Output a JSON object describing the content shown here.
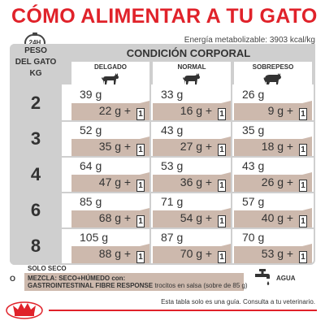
{
  "title": "CÓMO ALIMENTAR A TU GATO",
  "clock_label": "24H",
  "energy": "Energía metabolizable: 3903 kcal/kg",
  "weight_header": [
    "PESO",
    "DEL GATO",
    "KG"
  ],
  "condition_header": "CONDICIÓN CORPORAL",
  "columns": [
    "DELGADO",
    "NORMAL",
    "SOBREPESO"
  ],
  "pouch_label": "1",
  "rows": [
    {
      "kg": "2",
      "cells": [
        {
          "dry": "39 g",
          "mix": "22 g  + "
        },
        {
          "dry": "33 g",
          "mix": "16 g  + "
        },
        {
          "dry": "26 g",
          "mix": "9 g  + "
        }
      ]
    },
    {
      "kg": "3",
      "cells": [
        {
          "dry": "52 g",
          "mix": "35 g  + "
        },
        {
          "dry": "43 g",
          "mix": "27 g  + "
        },
        {
          "dry": "35 g",
          "mix": "18 g  + "
        }
      ]
    },
    {
      "kg": "4",
      "cells": [
        {
          "dry": "64 g",
          "mix": "47 g  + "
        },
        {
          "dry": "53 g",
          "mix": "36 g  + "
        },
        {
          "dry": "43 g",
          "mix": "26 g  + "
        }
      ]
    },
    {
      "kg": "6",
      "cells": [
        {
          "dry": "85 g",
          "mix": "68 g  + "
        },
        {
          "dry": "71 g",
          "mix": "54 g  + "
        },
        {
          "dry": "57 g",
          "mix": "40 g  + "
        }
      ]
    },
    {
      "kg": "8",
      "cells": [
        {
          "dry": "105 g",
          "mix": "88 g  + "
        },
        {
          "dry": "87 g",
          "mix": "70 g  + "
        },
        {
          "dry": "70 g",
          "mix": "53 g  + "
        }
      ]
    }
  ],
  "legend": {
    "solo_seco": "SOLO SECO",
    "o": "O",
    "mezcla": "MEZCLA: SECO+HÚMEDO con:",
    "product": "GASTROINTESTINAL FIBRE RESPONSE",
    "product_desc": " trocitos en salsa (sobre de 85 g)",
    "water": "AGUA"
  },
  "footer": "Esta tabla solo es una guía. Consulta a tu veterinario.",
  "colors": {
    "red": "#e0222a",
    "grey": "#cfcfcf",
    "tan": "#cdb9ad"
  },
  "icons": [
    "clock-icon",
    "cat-icon",
    "water-tap-icon",
    "crown-logo-icon"
  ]
}
